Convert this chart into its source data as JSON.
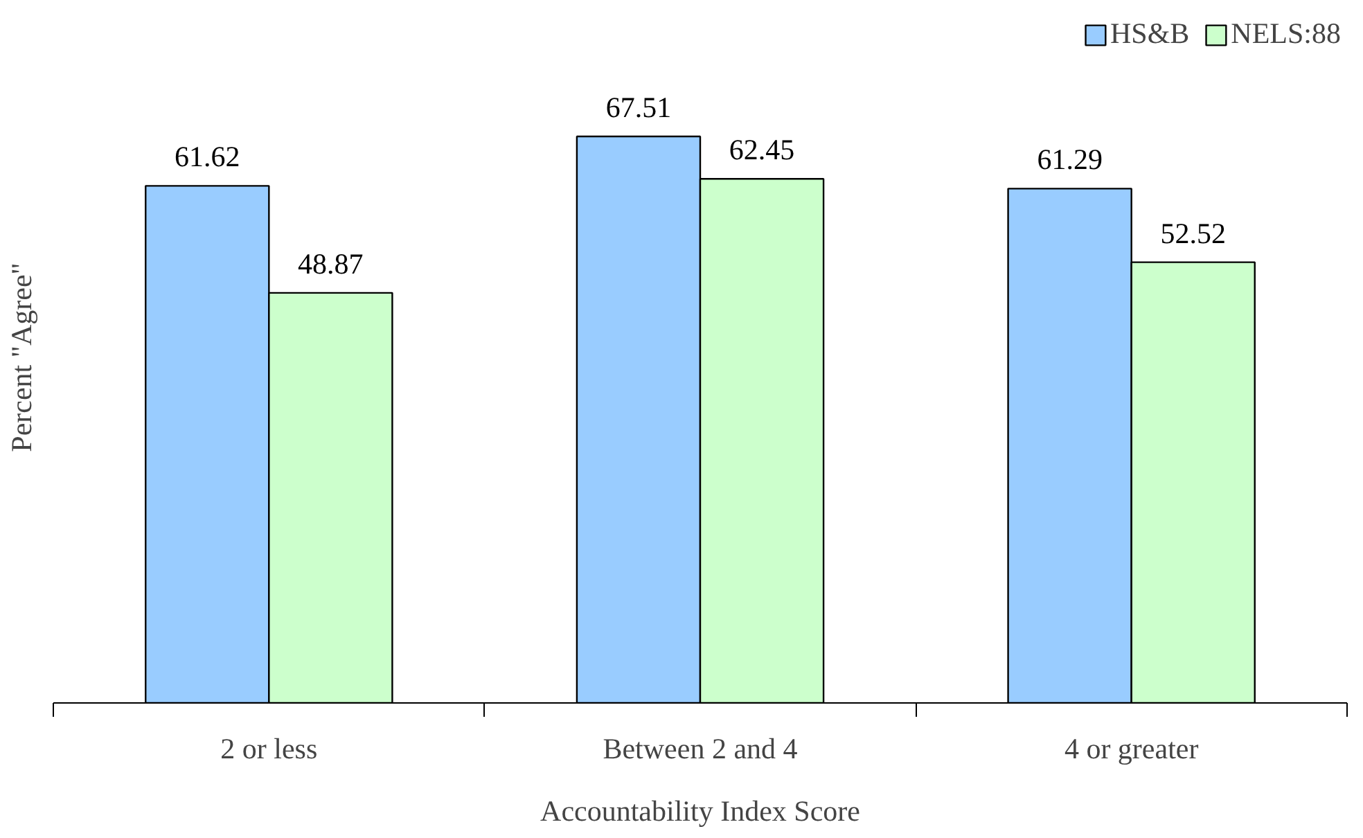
{
  "chart_data": {
    "type": "bar",
    "xlabel": "Accountability Index Score",
    "ylabel": "Percent \"Agree\"",
    "categories": [
      "2 or less",
      "Between 2 and 4",
      "4 or greater"
    ],
    "series": [
      {
        "name": "HS&B",
        "color": "#99ccff",
        "values": [
          61.62,
          67.51,
          61.29
        ]
      },
      {
        "name": "NELS:88",
        "color": "#ccffcc",
        "values": [
          48.87,
          62.45,
          52.52
        ]
      }
    ],
    "data_labels": true,
    "legend": "top right",
    "tick_labels": "x"
  }
}
